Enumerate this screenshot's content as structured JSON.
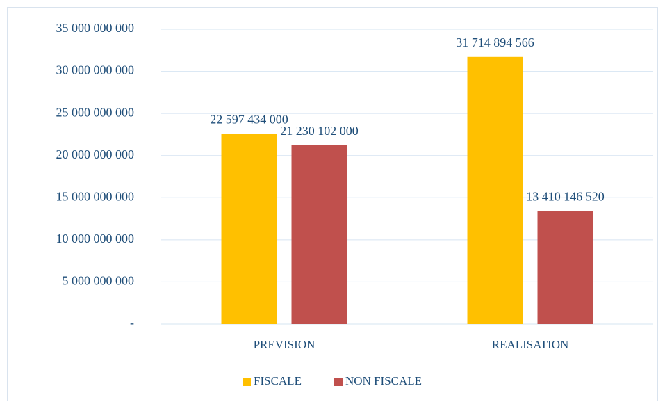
{
  "chart_data": {
    "type": "bar",
    "categories": [
      "PREVISION",
      "REALISATION"
    ],
    "series": [
      {
        "name": "FISCALE",
        "color": "#FFC000",
        "values": [
          22597434000,
          31714894566
        ],
        "value_labels": [
          "22 597 434 000",
          "31 714 894 566"
        ]
      },
      {
        "name": "NON FISCALE",
        "color": "#C0504D",
        "values": [
          21230102000,
          13410146520
        ],
        "value_labels": [
          "21 230 102 000",
          "13 410 146 520"
        ]
      }
    ],
    "ylim": [
      0,
      35000000000
    ],
    "yticks": [
      {
        "value": 0,
        "label": "-"
      },
      {
        "value": 5000000000,
        "label": "5 000 000 000"
      },
      {
        "value": 10000000000,
        "label": "10 000 000 000"
      },
      {
        "value": 15000000000,
        "label": "15 000 000 000"
      },
      {
        "value": 20000000000,
        "label": "20 000 000 000"
      },
      {
        "value": 25000000000,
        "label": "25 000 000 000"
      },
      {
        "value": 30000000000,
        "label": "30 000 000 000"
      },
      {
        "value": 35000000000,
        "label": "35 000 000 000"
      }
    ],
    "grid": true,
    "legend": "bottom"
  }
}
